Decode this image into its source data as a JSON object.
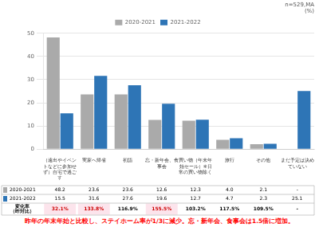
{
  "chart_data": {
    "type": "bar",
    "categories": [
      "（遠出やイベントなどに参加せず）自宅で過ごす",
      "実家へ帰省",
      "初詣",
      "忘・新年会、食事会",
      "買い物（年末年始セール）※日常の買い物除く",
      "旅行",
      "その他",
      "まだ予定は決めていない"
    ],
    "series": [
      {
        "name": "2020-2021",
        "color": "#aaaaaa",
        "values": [
          48.2,
          23.6,
          23.6,
          12.6,
          12.3,
          4.0,
          2.1,
          null
        ],
        "value_labels": [
          "48.2",
          "23.6",
          "23.6",
          "12.6",
          "12.3",
          "4.0",
          "2.1",
          "-"
        ]
      },
      {
        "name": "2021-2022",
        "color": "#2e75b6",
        "values": [
          15.5,
          31.6,
          27.6,
          19.6,
          12.7,
          4.7,
          2.3,
          25.1
        ],
        "value_labels": [
          "15.5",
          "31.6",
          "27.6",
          "19.6",
          "12.7",
          "4.7",
          "2.3",
          "25.1"
        ]
      }
    ],
    "ylim": [
      0,
      50
    ],
    "yticks": [
      0,
      10,
      20,
      30,
      40,
      50
    ],
    "grid": true,
    "legend": "top",
    "note": "n=529,MA\n(%)",
    "change_label": [
      "変化率",
      "（昨対比）"
    ],
    "change_rates": [
      "32.1%",
      "133.8%",
      "116.9%",
      "155.5%",
      "103.2%",
      "117.5%",
      "109.5%",
      "-"
    ],
    "highlight_change": [
      true,
      true,
      false,
      true,
      false,
      false,
      false,
      false
    ],
    "highlight_color": "#cc0000",
    "footer": "昨年の年末年始と比較し、ステイホーム率が1/3に減少。忘・新年会、食事会は1.5倍に増加。",
    "footer_color": "#ff0000"
  }
}
